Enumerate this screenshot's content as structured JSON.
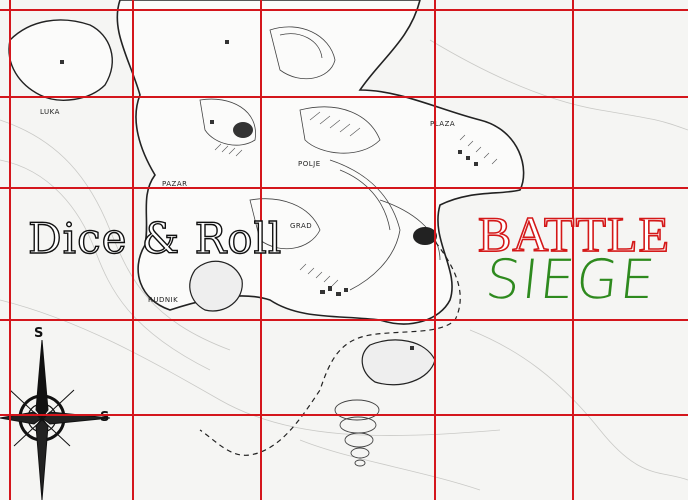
{
  "game": {
    "title": "Dice & Roll",
    "mode_line1": "BATTLE",
    "mode_line2": "SIEGE"
  },
  "board": {
    "grid_color": "#d4161c",
    "columns": 5,
    "rows": 4
  },
  "compass": {
    "north": "S",
    "east": "S"
  },
  "map_labels": [
    "LUKA",
    "PAZAR",
    "RUDNIK",
    "POLJE",
    "PLAZA",
    "GRAD"
  ],
  "colors": {
    "title_outline": "#111111",
    "battle": "#d41818",
    "siege": "#2e8a1e"
  }
}
